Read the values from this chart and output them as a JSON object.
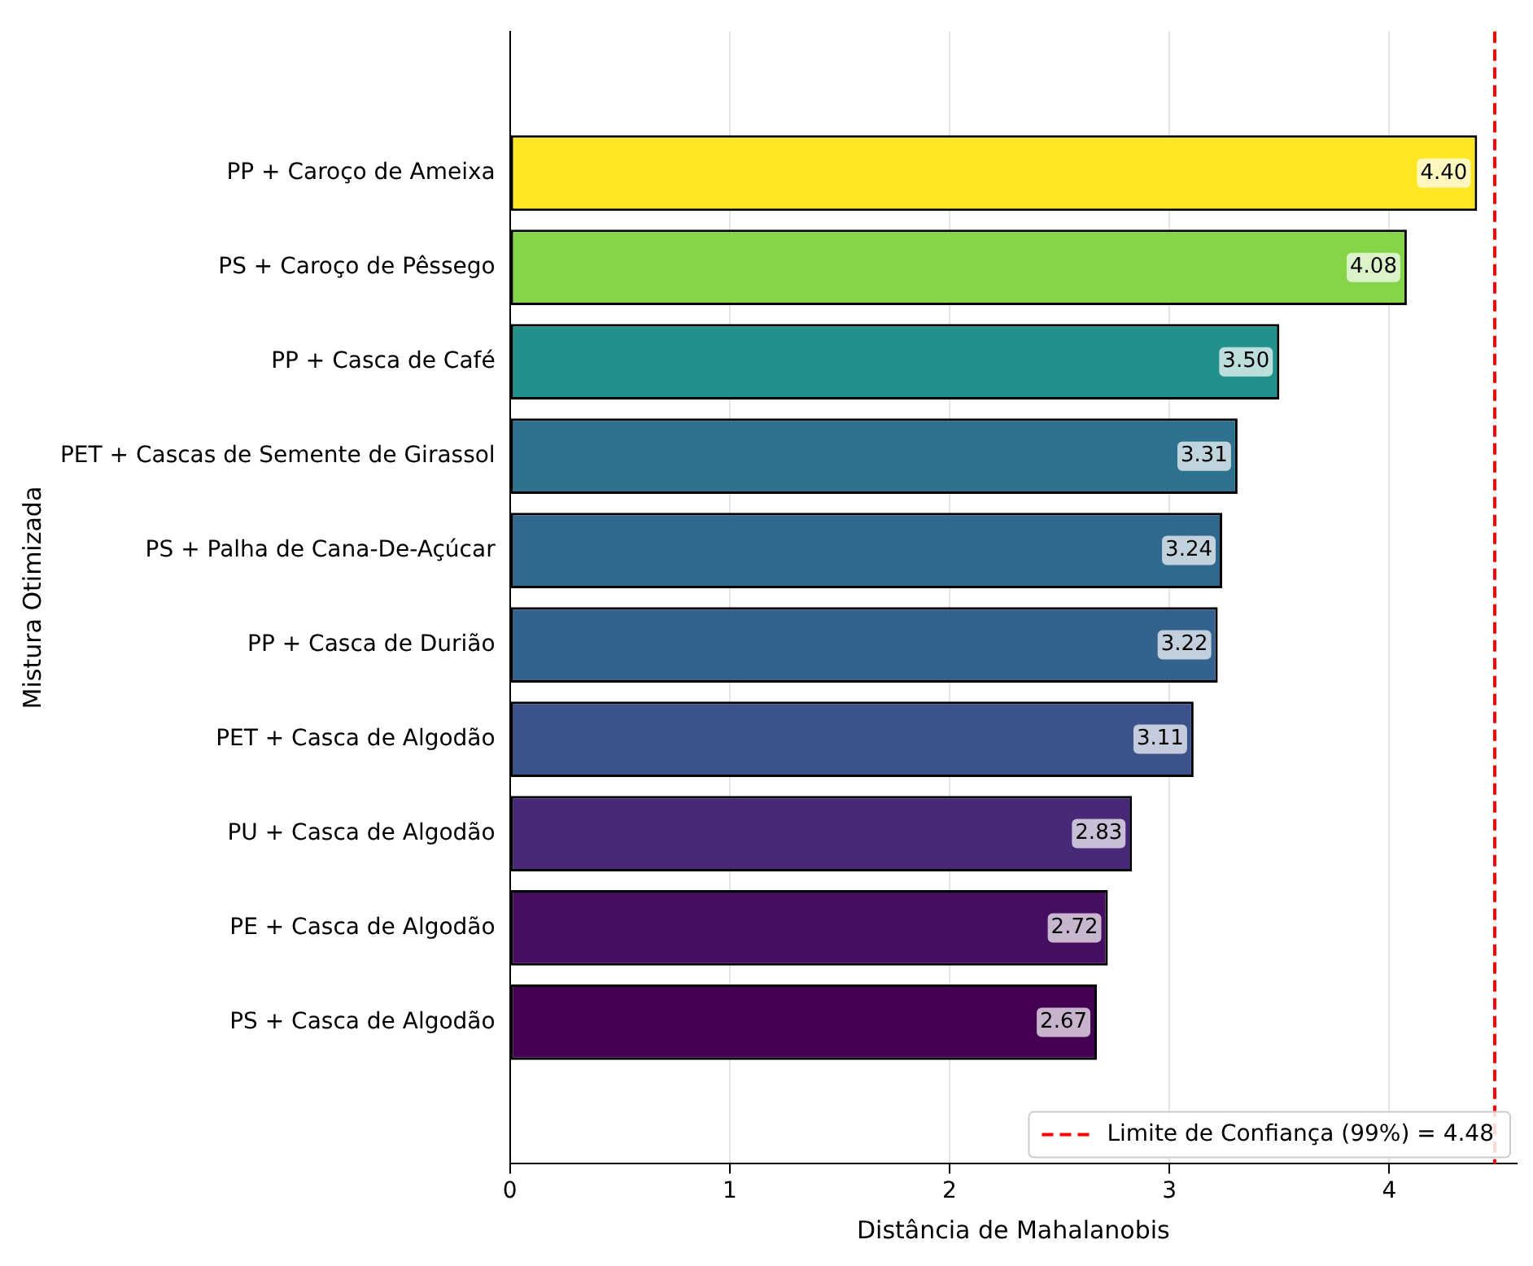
{
  "chart_data": {
    "type": "bar",
    "orientation": "horizontal",
    "xlabel": "Distância de Mahalanobis",
    "ylabel": "Mistura Otimizada",
    "categories": [
      "PP + Caroço de Ameixa",
      "PS + Caroço de Pêssego",
      "PP + Casca de Café",
      "PET + Cascas de Semente de Girassol",
      "PS + Palha de Cana-De-Açúcar",
      "PP + Casca de Durião",
      "PET + Casca de Algodão",
      "PU + Casca de Algodão",
      "PE + Casca de Algodão",
      "PS + Casca de Algodão"
    ],
    "values": [
      4.4,
      4.08,
      3.5,
      3.31,
      3.24,
      3.22,
      3.11,
      2.83,
      2.72,
      2.67
    ],
    "value_labels": [
      "4.40",
      "4.08",
      "3.50",
      "3.31",
      "3.24",
      "3.22",
      "3.11",
      "2.83",
      "2.72",
      "2.67"
    ],
    "colors": [
      "#fde725",
      "#86d549",
      "#21918c",
      "#2c718e",
      "#31688e",
      "#33638d",
      "#3b528b",
      "#482878",
      "#470d60",
      "#440154"
    ],
    "xlim": [
      0,
      4.58
    ],
    "xticks": [
      0,
      1,
      2,
      3,
      4
    ],
    "grid": "x",
    "legend": "bottom right",
    "ref_lines": [
      {
        "axis": "x",
        "value": 4.48,
        "label": "Limite de Confiança (99%) = 4.48",
        "color": "#ff0000",
        "line_style": "dashed"
      }
    ]
  }
}
